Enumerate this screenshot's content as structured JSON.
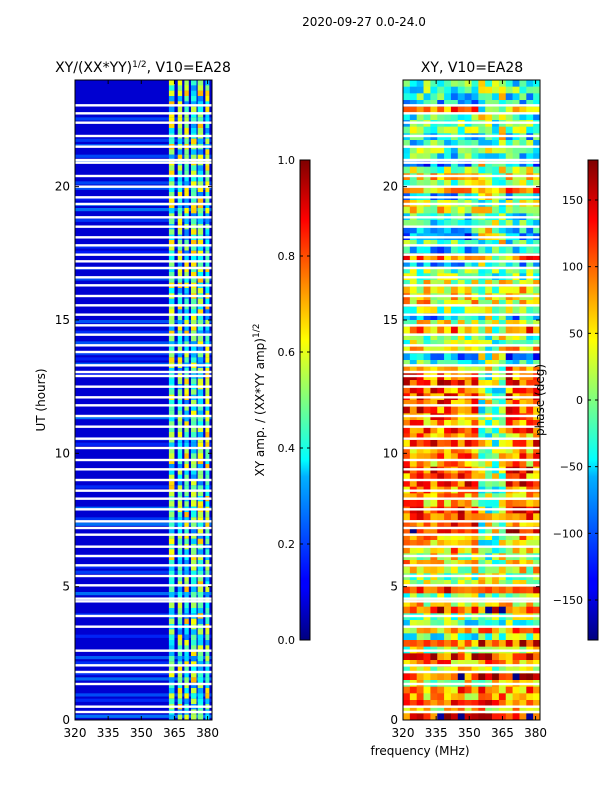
{
  "figure": {
    "suptitle": "2020-09-27 0.0-24.0",
    "xlabel": "frequency (MHz)"
  },
  "chart_data": [
    {
      "type": "heatmap",
      "title_main": "XY/(XX*YY)",
      "title_sup": "1/2",
      "title_rest": ", V10=EA28",
      "xlabel": "",
      "ylabel": "UT (hours)",
      "xlim": [
        320,
        382
      ],
      "ylim": [
        0,
        24
      ],
      "xticks": [
        "320",
        "335",
        "350",
        "365",
        "380"
      ],
      "xtick_values": [
        320,
        335,
        350,
        365,
        380
      ],
      "yticks": [
        "0",
        "5",
        "10",
        "15",
        "20"
      ],
      "ytick_values": [
        0,
        5,
        10,
        15,
        20
      ],
      "colorbar": {
        "label_main": "XY amp. / (XX*YY amp)",
        "label_sup": "1/2",
        "range": [
          0.0,
          1.0
        ],
        "ticks": [
          "0.0",
          "0.2",
          "0.4",
          "0.6",
          "0.8",
          "1.0"
        ],
        "tick_values": [
          0.0,
          0.2,
          0.4,
          0.6,
          0.8,
          1.0
        ]
      }
    },
    {
      "type": "heatmap",
      "title": "XY, V10=EA28",
      "ylabel": "",
      "xlim": [
        320,
        382
      ],
      "ylim": [
        0,
        24
      ],
      "xticks": [
        "320",
        "335",
        "350",
        "365",
        "380"
      ],
      "xtick_values": [
        320,
        335,
        350,
        365,
        380
      ],
      "yticks": [
        "0",
        "5",
        "10",
        "15",
        "20"
      ],
      "ytick_values": [
        0,
        5,
        10,
        15,
        20
      ],
      "colorbar": {
        "label": "phase (deg)",
        "range": [
          -180,
          180
        ],
        "ticks": [
          "−150",
          "−100",
          "−50",
          "0",
          "50",
          "100",
          "150"
        ],
        "tick_values": [
          -150,
          -100,
          -50,
          0,
          50,
          100,
          150
        ]
      }
    }
  ],
  "gap_hours": [
    0.3,
    0.5,
    1.35,
    1.8,
    2.05,
    2.6,
    3.5,
    3.9,
    4.45,
    4.55,
    5.05,
    5.4,
    5.8,
    6.15,
    6.5,
    6.95,
    7.2,
    7.45,
    7.9,
    8.3,
    8.6,
    9.0,
    9.4,
    9.75,
    10.2,
    10.55,
    11.0,
    11.4,
    11.8,
    12.1,
    12.5,
    12.9,
    13.05,
    13.3,
    13.8,
    14.05,
    14.45,
    14.8,
    15.2,
    15.55,
    15.9,
    16.3,
    16.6,
    16.95,
    17.2,
    17.45,
    17.8,
    18.1,
    18.5,
    18.85,
    19.35,
    19.6,
    20.0,
    20.4,
    20.9,
    21.0,
    21.5,
    21.9,
    22.4,
    22.75,
    23.05
  ]
}
